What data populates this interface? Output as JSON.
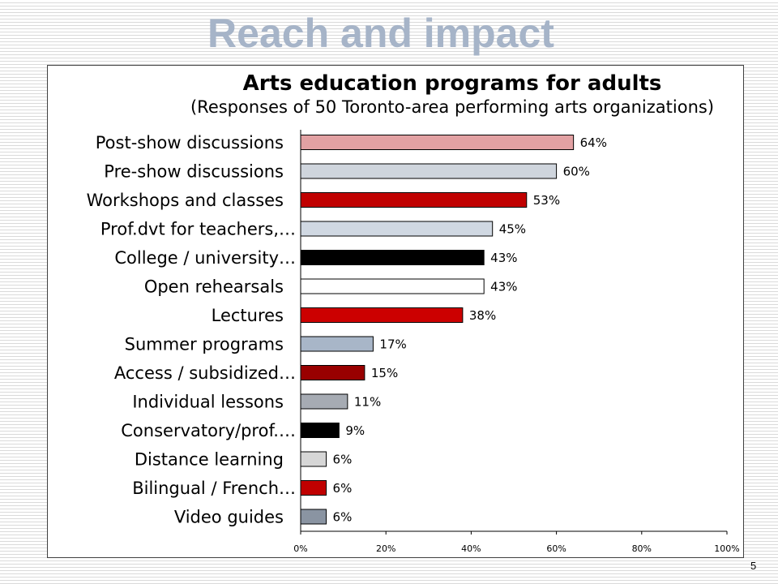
{
  "slide": {
    "title": "Reach and impact",
    "page_number": "5",
    "title_color": "#a6b4c8"
  },
  "chart_data": {
    "type": "bar",
    "orientation": "horizontal",
    "title": "Arts education programs for adults",
    "subtitle": "(Responses of 50 Toronto-area performing arts organizations)",
    "xlabel": "",
    "ylabel": "",
    "categories": [
      "Post-show discussions",
      "Pre-show discussions",
      "Workshops and classes",
      "Prof.dvt for teachers,…",
      "College / university…",
      "Open rehearsals",
      "Lectures",
      "Summer programs",
      "Access / subsidized…",
      "Individual lessons",
      "Conservatory/prof.…",
      "Distance learning",
      "Bilingual / French…",
      "Video guides"
    ],
    "values": [
      64,
      60,
      53,
      45,
      43,
      43,
      38,
      17,
      15,
      11,
      9,
      6,
      6,
      6
    ],
    "value_labels": [
      "64%",
      "60%",
      "53%",
      "45%",
      "43%",
      "43%",
      "38%",
      "17%",
      "15%",
      "11%",
      "9%",
      "6%",
      "6%",
      "6%"
    ],
    "colors": [
      "#e2a1a3",
      "#cfd5dd",
      "#c00000",
      "#d0d8e2",
      "#000000",
      "#ffffff",
      "#cc0000",
      "#a8b6c8",
      "#990000",
      "#a6abb3",
      "#000000",
      "#d6d6d6",
      "#c00000",
      "#8a94a2"
    ],
    "bar_outline_color": "#000000",
    "xlim": [
      0,
      100
    ],
    "x_ticks": [
      0,
      20,
      40,
      60,
      80,
      100
    ],
    "x_tick_labels": [
      "0%",
      "20%",
      "40%",
      "60%",
      "80%",
      "100%"
    ],
    "grid": false
  }
}
